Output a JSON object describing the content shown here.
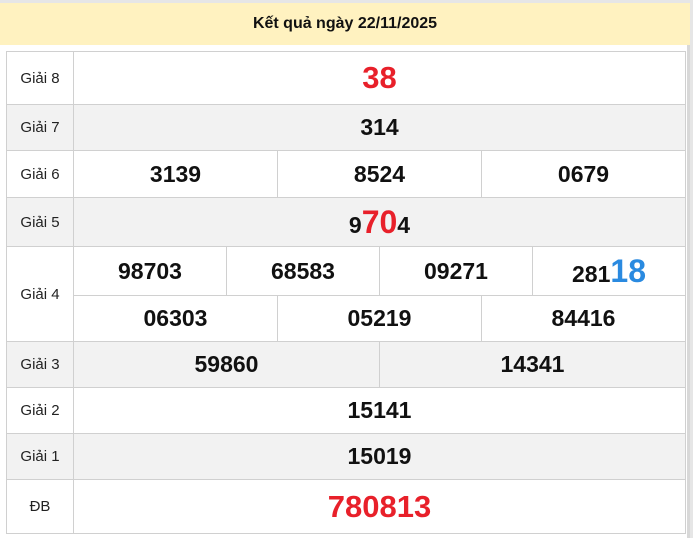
{
  "title": "Kết quả ngày 22/11/2025",
  "colors": {
    "header_bg": "#fff2c0",
    "highlight_red": "#e8202a",
    "highlight_blue": "#2a8ae0",
    "alt_row": "#f2f2f2"
  },
  "prizes": {
    "g8": {
      "label": "Giải 8",
      "numbers": [
        "38"
      ]
    },
    "g7": {
      "label": "Giải 7",
      "numbers": [
        "314"
      ]
    },
    "g6": {
      "label": "Giải 6",
      "numbers": [
        "3139",
        "8524",
        "0679"
      ]
    },
    "g5": {
      "label": "Giải 5",
      "pre": "9",
      "hl": "70",
      "post": "4"
    },
    "g4": {
      "label": "Giải 4",
      "numbers": [
        "98703",
        "68583",
        "09271",
        "06303",
        "05219",
        "84416"
      ],
      "last_pre": "281",
      "last_hl": "18"
    },
    "g3": {
      "label": "Giải 3",
      "numbers": [
        "59860",
        "14341"
      ]
    },
    "g2": {
      "label": "Giải 2",
      "numbers": [
        "15141"
      ]
    },
    "g1": {
      "label": "Giải 1",
      "numbers": [
        "15019"
      ]
    },
    "db": {
      "label": "ĐB",
      "numbers": [
        "780813"
      ]
    }
  }
}
